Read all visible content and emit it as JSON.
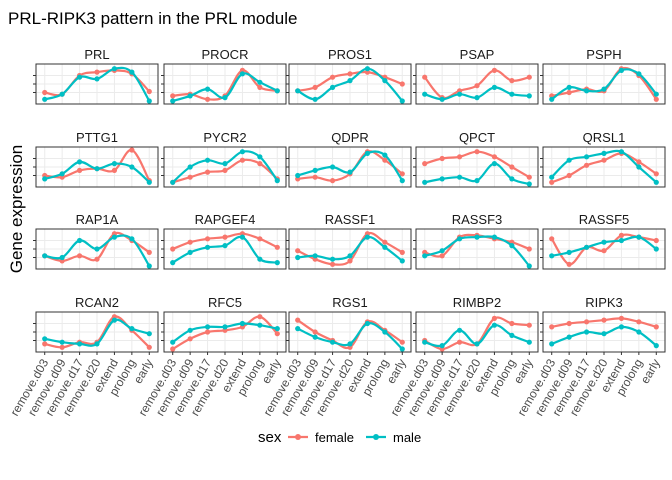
{
  "chart_data": {
    "type": "line",
    "title": "PRL-RIPK3 pattern in the PRL module",
    "ylabel": "Gene expression",
    "xlabel": "",
    "categories": [
      "remove.d03",
      "remove.d09",
      "remove.d17",
      "remove.d20",
      "extend",
      "prolong",
      "early"
    ],
    "legend": {
      "title": "sex",
      "position": "bottom",
      "entries": [
        {
          "name": "female",
          "color": "#F8766D"
        },
        {
          "name": "male",
          "color": "#00BFC4"
        }
      ]
    },
    "grid": true,
    "ylim": [
      0,
      1
    ],
    "facets": [
      {
        "name": "PRL",
        "series": [
          {
            "name": "female",
            "values": [
              0.25,
              0.2,
              0.75,
              0.85,
              0.9,
              0.8,
              0.28
            ]
          },
          {
            "name": "male",
            "values": [
              0.05,
              0.2,
              0.7,
              0.65,
              0.95,
              0.85,
              0.0
            ]
          }
        ]
      },
      {
        "name": "PROCR",
        "series": [
          {
            "name": "female",
            "values": [
              0.15,
              0.2,
              0.05,
              0.15,
              0.9,
              0.4,
              0.3
            ]
          },
          {
            "name": "male",
            "values": [
              0.0,
              0.15,
              0.35,
              0.1,
              0.8,
              0.55,
              0.3
            ]
          }
        ]
      },
      {
        "name": "PROS1",
        "series": [
          {
            "name": "female",
            "values": [
              0.3,
              0.4,
              0.7,
              0.8,
              0.85,
              0.7,
              0.5
            ]
          },
          {
            "name": "male",
            "values": [
              0.3,
              0.05,
              0.4,
              0.6,
              0.95,
              0.6,
              0.0
            ]
          }
        ]
      },
      {
        "name": "PSAP",
        "series": [
          {
            "name": "female",
            "values": [
              0.7,
              0.1,
              0.3,
              0.45,
              0.9,
              0.6,
              0.7
            ]
          },
          {
            "name": "male",
            "values": [
              0.2,
              0.05,
              0.2,
              0.1,
              0.4,
              0.2,
              0.15
            ]
          }
        ]
      },
      {
        "name": "PSPH",
        "series": [
          {
            "name": "female",
            "values": [
              0.15,
              0.25,
              0.35,
              0.3,
              0.95,
              0.75,
              0.05
            ]
          },
          {
            "name": "male",
            "values": [
              0.05,
              0.4,
              0.3,
              0.35,
              0.9,
              0.8,
              0.2
            ]
          }
        ]
      },
      {
        "name": "PTTG1",
        "series": [
          {
            "name": "female",
            "values": [
              0.25,
              0.2,
              0.4,
              0.45,
              0.4,
              1.0,
              0.1
            ]
          },
          {
            "name": "male",
            "values": [
              0.15,
              0.3,
              0.65,
              0.45,
              0.6,
              0.5,
              0.05
            ]
          }
        ]
      },
      {
        "name": "PYCR2",
        "series": [
          {
            "name": "female",
            "values": [
              0.05,
              0.2,
              0.35,
              0.4,
              0.7,
              0.6,
              0.15
            ]
          },
          {
            "name": "male",
            "values": [
              0.05,
              0.5,
              0.7,
              0.6,
              0.95,
              0.8,
              0.1
            ]
          }
        ]
      },
      {
        "name": "QDPR",
        "series": [
          {
            "name": "female",
            "values": [
              0.15,
              0.2,
              0.1,
              0.3,
              0.95,
              0.7,
              0.3
            ]
          },
          {
            "name": "male",
            "values": [
              0.25,
              0.4,
              0.5,
              0.35,
              0.9,
              0.85,
              0.1
            ]
          }
        ]
      },
      {
        "name": "QPCT",
        "series": [
          {
            "name": "female",
            "values": [
              0.6,
              0.75,
              0.8,
              0.95,
              0.8,
              0.5,
              0.2
            ]
          },
          {
            "name": "male",
            "values": [
              0.05,
              0.15,
              0.2,
              0.1,
              0.6,
              0.15,
              0.0
            ]
          }
        ]
      },
      {
        "name": "QRSL1",
        "series": [
          {
            "name": "female",
            "values": [
              0.05,
              0.25,
              0.55,
              0.7,
              0.9,
              0.65,
              0.3
            ]
          },
          {
            "name": "male",
            "values": [
              0.2,
              0.7,
              0.8,
              0.9,
              0.95,
              0.5,
              0.05
            ]
          }
        ]
      },
      {
        "name": "RAP1A",
        "series": [
          {
            "name": "female",
            "values": [
              0.3,
              0.15,
              0.3,
              0.2,
              0.95,
              0.75,
              0.4
            ]
          },
          {
            "name": "male",
            "values": [
              0.3,
              0.25,
              0.75,
              0.5,
              0.85,
              0.8,
              0.0
            ]
          }
        ]
      },
      {
        "name": "RAPGEF4",
        "series": [
          {
            "name": "female",
            "values": [
              0.5,
              0.7,
              0.8,
              0.85,
              0.95,
              0.8,
              0.55
            ]
          },
          {
            "name": "male",
            "values": [
              0.1,
              0.4,
              0.55,
              0.6,
              0.85,
              0.2,
              0.1
            ]
          }
        ]
      },
      {
        "name": "RASSF1",
        "series": [
          {
            "name": "female",
            "values": [
              0.45,
              0.2,
              0.05,
              0.15,
              0.95,
              0.7,
              0.4
            ]
          },
          {
            "name": "male",
            "values": [
              0.25,
              0.3,
              0.2,
              0.3,
              0.85,
              0.55,
              0.15
            ]
          }
        ]
      },
      {
        "name": "RASSF3",
        "series": [
          {
            "name": "female",
            "values": [
              0.4,
              0.3,
              0.85,
              0.9,
              0.8,
              0.7,
              0.5
            ]
          },
          {
            "name": "male",
            "values": [
              0.3,
              0.45,
              0.8,
              0.85,
              0.85,
              0.6,
              0.0
            ]
          }
        ]
      },
      {
        "name": "RASSF5",
        "series": [
          {
            "name": "female",
            "values": [
              0.8,
              0.05,
              0.55,
              0.45,
              0.9,
              0.85,
              0.75
            ]
          },
          {
            "name": "male",
            "values": [
              0.3,
              0.4,
              0.55,
              0.7,
              0.75,
              0.85,
              0.5
            ]
          }
        ]
      },
      {
        "name": "RCAN2",
        "series": [
          {
            "name": "female",
            "values": [
              0.15,
              0.05,
              0.2,
              0.2,
              0.95,
              0.55,
              0.05
            ]
          },
          {
            "name": "male",
            "values": [
              0.3,
              0.2,
              0.15,
              0.15,
              0.85,
              0.6,
              0.45
            ]
          }
        ]
      },
      {
        "name": "RFC5",
        "series": [
          {
            "name": "female",
            "values": [
              0.0,
              0.3,
              0.5,
              0.55,
              0.65,
              0.95,
              0.45
            ]
          },
          {
            "name": "male",
            "values": [
              0.2,
              0.55,
              0.65,
              0.65,
              0.75,
              0.7,
              0.6
            ]
          }
        ]
      },
      {
        "name": "RGS1",
        "series": [
          {
            "name": "female",
            "values": [
              0.85,
              0.5,
              0.25,
              0.05,
              0.8,
              0.55,
              0.2
            ]
          },
          {
            "name": "male",
            "values": [
              0.6,
              0.35,
              0.2,
              0.15,
              0.75,
              0.5,
              0.0
            ]
          }
        ]
      },
      {
        "name": "RIMBP2",
        "series": [
          {
            "name": "female",
            "values": [
              0.25,
              0.0,
              0.2,
              0.15,
              0.9,
              0.75,
              0.7
            ]
          },
          {
            "name": "male",
            "values": [
              0.2,
              0.1,
              0.55,
              0.15,
              0.7,
              0.4,
              0.2
            ]
          }
        ]
      },
      {
        "name": "RIPK3",
        "series": [
          {
            "name": "female",
            "values": [
              0.65,
              0.75,
              0.8,
              0.85,
              0.9,
              0.8,
              0.65
            ]
          },
          {
            "name": "male",
            "values": [
              0.15,
              0.35,
              0.5,
              0.45,
              0.65,
              0.5,
              0.1
            ]
          }
        ]
      }
    ]
  }
}
